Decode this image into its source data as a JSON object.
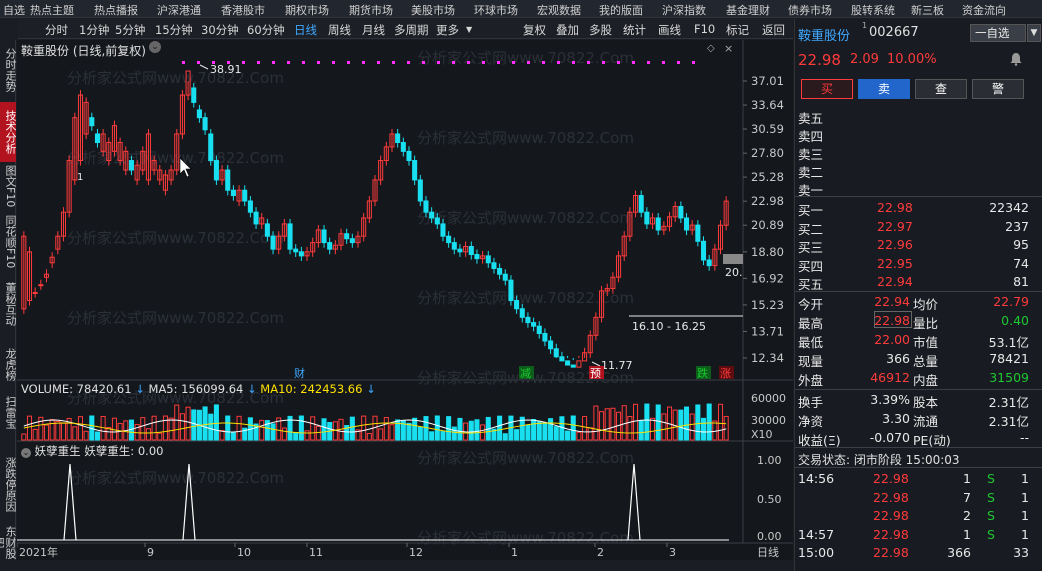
{
  "topnav": [
    "自选",
    "热点主题",
    "热点播报",
    "沪深港通",
    "香港股市",
    "期权市场",
    "期货市场",
    "美股市场",
    "环球市场",
    "宏观数据",
    "我的版面",
    "沪深指数",
    "基金理财",
    "债券市场",
    "股转系统",
    "新三板",
    "资金流向"
  ],
  "toolbar": {
    "periods": [
      "分时",
      "1分钟",
      "5分钟",
      "15分钟",
      "30分钟",
      "60分钟",
      "日线",
      "周线",
      "月线",
      "多周期",
      "更多"
    ],
    "active": "日线",
    "right": [
      "复权",
      "叠加",
      "多股",
      "统计",
      "画线",
      "F10",
      "标记",
      "返回"
    ]
  },
  "leftbar": [
    "分时走势",
    "技术分析",
    "图文F10",
    "同花顺F10",
    "董秘互动",
    "龙虎榜",
    "扫雷宝",
    "涨跌停原因",
    "东财股吧"
  ],
  "chart": {
    "title": "鞍重股份 (日线,前复权)",
    "high_label": "38.91",
    "low_label": "11.77",
    "range_label": "16.10 - 16.25",
    "last_label": "20.",
    "price_ticks": [
      "37.01",
      "33.64",
      "30.59",
      "27.80",
      "25.28",
      "22.98",
      "20.89",
      "18.80",
      "16.92",
      "15.23",
      "13.71",
      "12.34"
    ],
    "events": [
      "财",
      "减",
      "预",
      "跌",
      "涨"
    ],
    "volume_header": {
      "volume": "VOLUME: 78420.61",
      "ma5": "MA5: 156099.64",
      "ma10": "MA10: 242453.66"
    },
    "volume_ticks": [
      "60000",
      "30000",
      "X10"
    ],
    "indicator_header": {
      "name": "妖孽重生",
      "value": "妖孽重生: 0.00"
    },
    "indicator_ticks": [
      "1.00",
      "0.50",
      "0.00"
    ],
    "date_labels": [
      "2021年",
      "9",
      "10",
      "11",
      "12",
      "1",
      "2",
      "3"
    ],
    "period_label": "日线",
    "watermark": "分析家公式网www.70822.Com",
    "colors": {
      "up": "#ff3b3b",
      "down": "#19e0f0",
      "magenta": "#ff2fff",
      "yellow": "#ffe100",
      "white": "#ffffff"
    }
  },
  "chart_data": {
    "type": "candlestick",
    "title": "鞍重股份 (日线,前复权)",
    "high": 38.91,
    "low": 11.77,
    "ylim": [
      12.34,
      37.01
    ],
    "y_scale": "log",
    "last_close": 22.98
  },
  "side": {
    "name": "鞍重股份",
    "code": "002667",
    "watch": "一自选",
    "price": "22.98",
    "change": "2.09",
    "pct": "10.00%",
    "buttons": [
      "买",
      "卖",
      "查",
      "警"
    ],
    "sell": [
      "卖五",
      "卖四",
      "卖三",
      "卖二",
      "卖一"
    ],
    "buy": [
      {
        "l": "买一",
        "p": "22.98",
        "v": "22342"
      },
      {
        "l": "买二",
        "p": "22.97",
        "v": "237"
      },
      {
        "l": "买三",
        "p": "22.96",
        "v": "95"
      },
      {
        "l": "买四",
        "p": "22.95",
        "v": "74"
      },
      {
        "l": "买五",
        "p": "22.94",
        "v": "81"
      }
    ],
    "stats": [
      {
        "a": "今开",
        "av": "22.94",
        "b": "均价",
        "bv": "22.79",
        "ac": "red",
        "bc": "red"
      },
      {
        "a": "最高",
        "av": "22.98",
        "b": "量比",
        "bv": "0.40",
        "ac": "red",
        "bc": "green"
      },
      {
        "a": "最低",
        "av": "22.00",
        "b": "市值",
        "bv": "53.1亿",
        "ac": "red",
        "bc": "white"
      },
      {
        "a": "现量",
        "av": "366",
        "b": "总量",
        "bv": "78421",
        "ac": "white",
        "bc": "white"
      },
      {
        "a": "外盘",
        "av": "46912",
        "b": "内盘",
        "bv": "31509",
        "ac": "red",
        "bc": "green"
      }
    ],
    "stats2": [
      {
        "a": "换手",
        "av": "3.39%",
        "b": "股本",
        "bv": "2.31亿"
      },
      {
        "a": "净资",
        "av": "3.30",
        "b": "流通",
        "bv": "2.31亿"
      },
      {
        "a": "收益(Ξ)",
        "av": "-0.070",
        "b": "PE(动)",
        "bv": "--"
      }
    ],
    "trade_status": "交易状态: 闭市阶段 15:00:03",
    "ticks": [
      {
        "t": "14:56",
        "p": "22.98",
        "v": "1",
        "s": "S",
        "n": "1"
      },
      {
        "t": "",
        "p": "22.98",
        "v": "7",
        "s": "S",
        "n": "1"
      },
      {
        "t": "",
        "p": "22.98",
        "v": "2",
        "s": "S",
        "n": "1"
      },
      {
        "t": "14:57",
        "p": "22.98",
        "v": "1",
        "s": "S",
        "n": "1"
      },
      {
        "t": "15:00",
        "p": "22.98",
        "v": "366",
        "s": "",
        "n": "33"
      }
    ]
  }
}
